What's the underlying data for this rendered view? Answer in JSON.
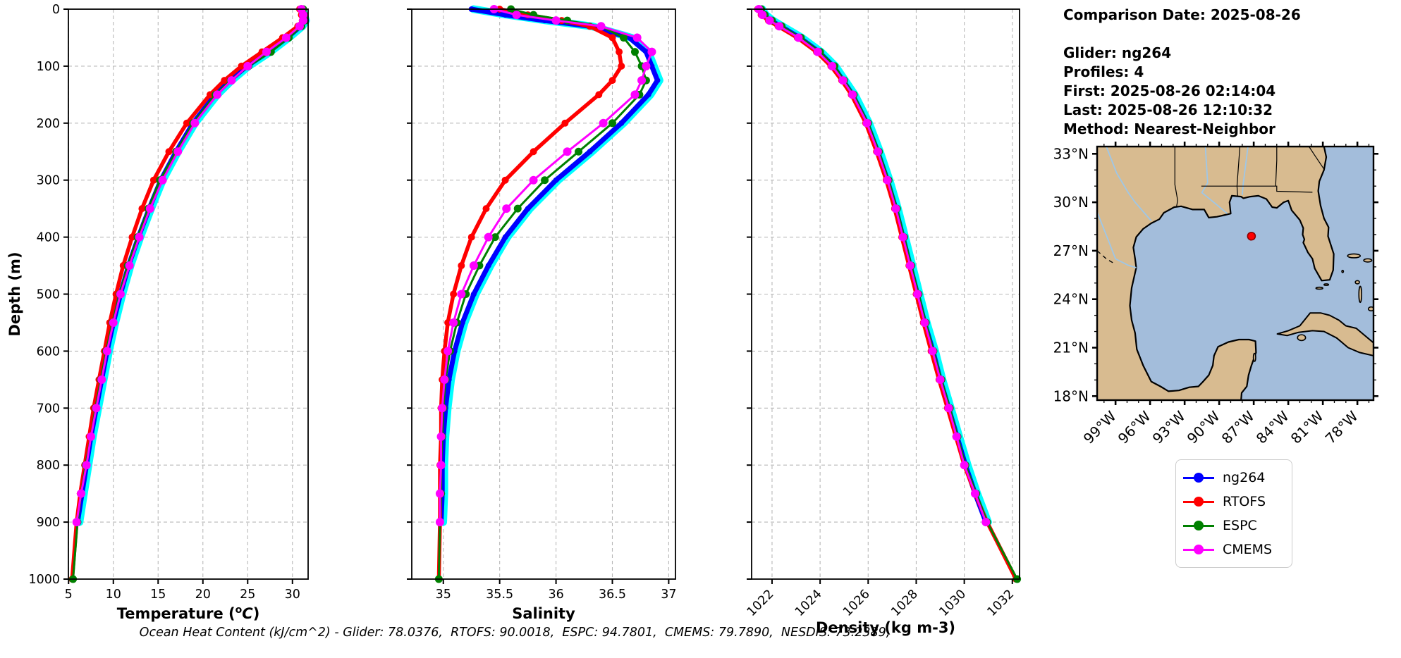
{
  "info_panel": {
    "lines": [
      "Comparison Date: 2025-08-26",
      "",
      "Glider: ng264",
      "Profiles: 4",
      "First: 2025-08-26 02:14:04",
      "Last: 2025-08-26 12:10:32",
      "Method: Nearest-Neighbor"
    ]
  },
  "footer": "Ocean Heat Content (kJ/cm^2) - Glider: 78.0376,  RTOFS: 90.0018,  ESPC: 94.7801,  CMEMS: 79.7890,  NESDIS: 73.2389,",
  "legend": {
    "entries": [
      {
        "label": "ng264",
        "color": "#0000ff"
      },
      {
        "label": "RTOFS",
        "color": "#ff0000"
      },
      {
        "label": "ESPC",
        "color": "#008000"
      },
      {
        "label": "CMEMS",
        "color": "#ff00ff"
      }
    ]
  },
  "map": {
    "land_color": "#d8bb90",
    "ocean_color": "#a3bddb",
    "river_color": "#9ec7e8",
    "extent": {
      "lon_min": -100.6,
      "lon_max": -76.6,
      "lat_min": 17.75,
      "lat_max": 33.45
    },
    "lat_ticks": [
      {
        "deg": 18,
        "label": "18°N"
      },
      {
        "deg": 21,
        "label": "21°N"
      },
      {
        "deg": 24,
        "label": "24°N"
      },
      {
        "deg": 27,
        "label": "27°N"
      },
      {
        "deg": 30,
        "label": "30°N"
      },
      {
        "deg": 33,
        "label": "33°N"
      }
    ],
    "lon_ticks": [
      {
        "deg": -99,
        "label": "99°W"
      },
      {
        "deg": -96,
        "label": "96°W"
      },
      {
        "deg": -93,
        "label": "93°W"
      },
      {
        "deg": -90,
        "label": "90°W"
      },
      {
        "deg": -87,
        "label": "87°W"
      },
      {
        "deg": -84,
        "label": "84°W"
      },
      {
        "deg": -81,
        "label": "81°W"
      },
      {
        "deg": -78,
        "label": "78°W"
      }
    ],
    "marker": {
      "lon": -87.2,
      "lat": 27.9,
      "color": "#ff0000",
      "edge": "#8b0000"
    }
  },
  "chart_data": [
    {
      "type": "line",
      "xlabel": "Temperature (°C)",
      "ylabel": "Depth (m)",
      "xlim": [
        4.98,
        31.75
      ],
      "ylim": [
        0,
        1000
      ],
      "xticks": [
        5,
        10,
        15,
        20,
        25,
        30
      ],
      "yticks": [
        0,
        100,
        200,
        300,
        400,
        500,
        600,
        700,
        800,
        900,
        1000
      ],
      "xtick_rotation": 0,
      "show_ytick_labels": true,
      "grid": true,
      "depths": [
        0,
        10,
        20,
        30,
        50,
        75,
        100,
        125,
        150,
        200,
        250,
        300,
        350,
        400,
        450,
        500,
        550,
        600,
        650,
        700,
        750,
        800,
        850,
        900,
        1000
      ],
      "series": [
        {
          "name": "ng264",
          "color": "#0000ff",
          "underlay": "#00ffff",
          "lw": 7,
          "marker": 4,
          "values": [
            30.9,
            31.1,
            31.3,
            30.9,
            29.4,
            27.3,
            24.9,
            23.0,
            21.4,
            18.9,
            17.0,
            15.3,
            14.0,
            12.8,
            11.7,
            10.8,
            10.0,
            9.3,
            8.7,
            8.1,
            7.5,
            7.0,
            6.5,
            6.0,
            null
          ]
        },
        {
          "name": "RTOFS",
          "color": "#ff0000",
          "lw": 5.5,
          "marker": 5,
          "values": [
            30.8,
            31.0,
            31.1,
            30.6,
            28.9,
            26.6,
            24.3,
            22.4,
            20.8,
            18.2,
            16.2,
            14.5,
            13.2,
            12.1,
            11.1,
            10.3,
            9.6,
            9.0,
            8.4,
            7.8,
            7.3,
            6.8,
            6.3,
            5.9,
            5.4
          ]
        },
        {
          "name": "ESPC",
          "color": "#008000",
          "lw": 3,
          "marker": 5.5,
          "values": [
            31.2,
            31.3,
            31.4,
            31.0,
            29.6,
            27.6,
            25.1,
            23.1,
            21.4,
            18.9,
            17.0,
            15.2,
            13.9,
            12.7,
            11.6,
            10.7,
            9.9,
            9.2,
            8.6,
            8.0,
            7.5,
            6.9,
            6.4,
            6.0,
            5.5
          ]
        },
        {
          "name": "CMEMS",
          "color": "#ff00ff",
          "lw": 3,
          "marker": 6,
          "values": [
            31.0,
            31.2,
            31.2,
            30.8,
            29.3,
            27.1,
            25.0,
            23.2,
            21.6,
            19.1,
            17.2,
            15.5,
            14.1,
            12.9,
            11.8,
            10.8,
            10.0,
            9.3,
            8.7,
            8.1,
            7.5,
            7.0,
            6.4,
            5.9,
            null
          ]
        }
      ]
    },
    {
      "type": "line",
      "xlabel": "Salinity",
      "ylabel": "",
      "xlim": [
        34.72,
        37.06
      ],
      "ylim": [
        0,
        1000
      ],
      "xticks": [
        35.0,
        35.5,
        36.0,
        36.5,
        37.0
      ],
      "yticks": [
        0,
        100,
        200,
        300,
        400,
        500,
        600,
        700,
        800,
        900,
        1000
      ],
      "xtick_rotation": 0,
      "show_ytick_labels": false,
      "grid": true,
      "depths": [
        0,
        10,
        20,
        30,
        50,
        75,
        100,
        125,
        150,
        200,
        250,
        300,
        350,
        400,
        450,
        500,
        550,
        600,
        650,
        700,
        750,
        800,
        850,
        900,
        1000
      ],
      "series": [
        {
          "name": "ng264",
          "color": "#0000ff",
          "underlay": "#00ffff",
          "lw": 7,
          "marker": 4,
          "values": [
            35.25,
            35.55,
            35.9,
            36.3,
            36.65,
            36.8,
            36.85,
            36.9,
            36.82,
            36.58,
            36.3,
            36.0,
            35.75,
            35.55,
            35.4,
            35.27,
            35.17,
            35.1,
            35.05,
            35.02,
            35.0,
            34.99,
            34.99,
            34.98,
            null
          ]
        },
        {
          "name": "RTOFS",
          "color": "#ff0000",
          "lw": 5.5,
          "marker": 5,
          "values": [
            35.5,
            35.75,
            36.05,
            36.3,
            36.5,
            36.56,
            36.58,
            36.5,
            36.38,
            36.08,
            35.8,
            35.55,
            35.38,
            35.25,
            35.16,
            35.09,
            35.04,
            35.01,
            34.99,
            34.98,
            34.98,
            34.97,
            34.97,
            34.97,
            34.96
          ]
        },
        {
          "name": "ESPC",
          "color": "#008000",
          "lw": 3,
          "marker": 5.5,
          "values": [
            35.6,
            35.8,
            36.1,
            36.4,
            36.6,
            36.7,
            36.76,
            36.8,
            36.74,
            36.5,
            36.2,
            35.9,
            35.66,
            35.46,
            35.32,
            35.2,
            35.12,
            35.06,
            35.02,
            35.0,
            34.99,
            34.98,
            34.98,
            34.97,
            34.96
          ]
        },
        {
          "name": "CMEMS",
          "color": "#ff00ff",
          "lw": 3,
          "marker": 6,
          "values": [
            35.45,
            35.65,
            36.0,
            36.4,
            36.72,
            36.85,
            36.8,
            36.76,
            36.7,
            36.42,
            36.1,
            35.8,
            35.56,
            35.4,
            35.27,
            35.16,
            35.09,
            35.04,
            35.01,
            34.99,
            34.98,
            34.98,
            34.97,
            34.97,
            null
          ]
        }
      ]
    },
    {
      "type": "line",
      "xlabel": "Density (kg m-3)",
      "ylabel": "",
      "xlim": [
        1021.15,
        1032.3
      ],
      "ylim": [
        0,
        1000
      ],
      "xticks": [
        1022,
        1024,
        1026,
        1028,
        1030,
        1032
      ],
      "yticks": [
        0,
        100,
        200,
        300,
        400,
        500,
        600,
        700,
        800,
        900,
        1000
      ],
      "xtick_rotation": 45,
      "show_ytick_labels": false,
      "grid": true,
      "depths": [
        0,
        10,
        20,
        30,
        50,
        75,
        100,
        125,
        150,
        200,
        250,
        300,
        350,
        400,
        450,
        500,
        550,
        600,
        650,
        700,
        750,
        800,
        850,
        900,
        1000
      ],
      "series": [
        {
          "name": "ng264",
          "color": "#0000ff",
          "underlay": "#00ffff",
          "lw": 7,
          "marker": 4,
          "values": [
            1021.5,
            1021.65,
            1021.95,
            1022.35,
            1023.15,
            1023.95,
            1024.55,
            1024.95,
            1025.35,
            1025.95,
            1026.4,
            1026.8,
            1027.15,
            1027.45,
            1027.75,
            1028.05,
            1028.35,
            1028.7,
            1029.0,
            1029.35,
            1029.7,
            1030.05,
            1030.45,
            1030.9,
            null
          ]
        },
        {
          "name": "RTOFS",
          "color": "#ff0000",
          "lw": 5.5,
          "marker": 5,
          "values": [
            1021.4,
            1021.55,
            1021.85,
            1022.25,
            1023.05,
            1023.85,
            1024.45,
            1024.9,
            1025.3,
            1025.9,
            1026.35,
            1026.75,
            1027.1,
            1027.4,
            1027.7,
            1028.0,
            1028.3,
            1028.62,
            1028.95,
            1029.3,
            1029.65,
            1030.0,
            1030.45,
            1030.95,
            1032.15
          ]
        },
        {
          "name": "ESPC",
          "color": "#008000",
          "lw": 3,
          "marker": 5.5,
          "values": [
            1021.55,
            1021.7,
            1022.0,
            1022.4,
            1023.2,
            1024.0,
            1024.6,
            1025.0,
            1025.4,
            1026.0,
            1026.45,
            1026.85,
            1027.2,
            1027.5,
            1027.8,
            1028.1,
            1028.4,
            1028.72,
            1029.05,
            1029.4,
            1029.72,
            1030.05,
            1030.5,
            1030.95,
            1032.2
          ]
        },
        {
          "name": "CMEMS",
          "color": "#ff00ff",
          "lw": 3,
          "marker": 6,
          "values": [
            1021.45,
            1021.6,
            1021.9,
            1022.3,
            1023.1,
            1023.9,
            1024.5,
            1024.95,
            1025.35,
            1025.95,
            1026.4,
            1026.8,
            1027.15,
            1027.45,
            1027.75,
            1028.05,
            1028.35,
            1028.68,
            1029.0,
            1029.35,
            1029.68,
            1030.0,
            1030.45,
            1030.9,
            null
          ]
        }
      ]
    }
  ]
}
